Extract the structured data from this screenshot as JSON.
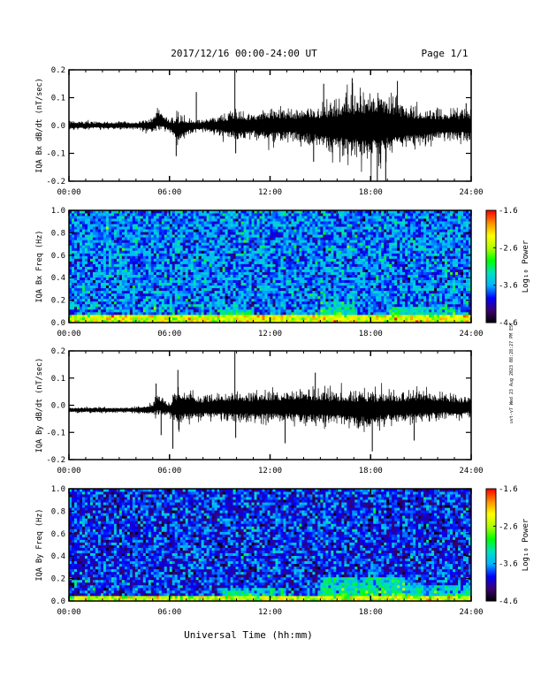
{
  "header": {
    "date_range": "2017/12/16  00:00-24:00 UT",
    "page": "Page 1/1"
  },
  "side_stamp": "uvt-v7 Wed 23 Aug 2023 08:28:27 PM EST",
  "x_axis_title": "Universal Time (hh:mm)",
  "colorbar_label": "Log₁₀ Power",
  "colorbar_ticks": [
    "-1.6",
    "-2.6",
    "-3.6",
    "-4.6"
  ],
  "colors": {
    "trace": "#000000",
    "colormap": [
      "#000000",
      "#3a006e",
      "#0000ff",
      "#00b4ff",
      "#00e0c0",
      "#00ff00",
      "#b0ff00",
      "#ffff00",
      "#ff9000",
      "#ff0000"
    ]
  },
  "chart_data": [
    {
      "type": "line",
      "ylabel": "IQA Bx dB/dt (nT/sec)",
      "xlim": [
        0,
        24
      ],
      "ylim": [
        -0.2,
        0.2
      ],
      "x_ticks": [
        "00:00",
        "06:00",
        "12:00",
        "18:00",
        "24:00"
      ],
      "y_ticks": [
        "-0.2",
        "-0.1",
        "0.0",
        "0.1",
        "0.2"
      ],
      "x_unit": "hours UT",
      "envelope": {
        "x": [
          0,
          2,
          4,
          5,
          5.3,
          6,
          6.5,
          7,
          8,
          9,
          10,
          11,
          12,
          13,
          14,
          15,
          16,
          17,
          18,
          19,
          20,
          21,
          22,
          23,
          24
        ],
        "upper": [
          0.02,
          0.015,
          0.015,
          0.03,
          0.07,
          0.02,
          0.05,
          0.03,
          0.02,
          0.04,
          0.06,
          0.05,
          0.07,
          0.06,
          0.07,
          0.08,
          0.1,
          0.12,
          0.13,
          0.12,
          0.08,
          0.07,
          0.06,
          0.06,
          0.07
        ],
        "lower": [
          -0.02,
          -0.015,
          -0.015,
          -0.03,
          -0.03,
          -0.02,
          -0.08,
          -0.04,
          -0.02,
          -0.04,
          -0.06,
          -0.05,
          -0.07,
          -0.06,
          -0.07,
          -0.09,
          -0.11,
          -0.13,
          -0.14,
          -0.12,
          -0.09,
          -0.08,
          -0.06,
          -0.06,
          -0.07
        ]
      },
      "spikes": [
        {
          "x": 6.4,
          "y": -0.11
        },
        {
          "x": 7.6,
          "y": 0.12
        },
        {
          "x": 9.9,
          "y": 0.2
        },
        {
          "x": 9.95,
          "y": -0.1
        },
        {
          "x": 14.6,
          "y": -0.13
        },
        {
          "x": 15.2,
          "y": 0.15
        },
        {
          "x": 16.9,
          "y": 0.17
        },
        {
          "x": 18.4,
          "y": -0.2
        },
        {
          "x": 18.9,
          "y": -0.2
        },
        {
          "x": 19.6,
          "y": 0.16
        },
        {
          "x": 23.7,
          "y": 0.08
        }
      ]
    },
    {
      "type": "heatmap",
      "ylabel": "IQA Bx Freq (Hz)",
      "xlim": [
        0,
        24
      ],
      "ylim": [
        0.0,
        1.0
      ],
      "x_ticks": [
        "00:00",
        "06:00",
        "12:00",
        "18:00",
        "24:00"
      ],
      "y_ticks": [
        "0.0",
        "0.2",
        "0.4",
        "0.6",
        "0.8",
        "1.0"
      ],
      "zlim": [
        -4.6,
        -1.6
      ],
      "background_level": -3.7,
      "low_freq_band": {
        "max_freq": 0.06,
        "level": -2.4
      },
      "enhanced_intervals": [
        {
          "x": [
            9,
            11
          ],
          "max_freq": 0.12,
          "level": -3.1
        },
        {
          "x": [
            15,
            17
          ],
          "max_freq": 0.18,
          "level": -3.0
        },
        {
          "x": [
            19,
            23
          ],
          "max_freq": 0.15,
          "level": -3.1
        }
      ]
    },
    {
      "type": "line",
      "ylabel": "IQA By dB/dt (nT/sec)",
      "xlim": [
        0,
        24
      ],
      "ylim": [
        -0.2,
        0.2
      ],
      "x_ticks": [
        "00:00",
        "06:00",
        "12:00",
        "18:00",
        "24:00"
      ],
      "y_ticks": [
        "-0.2",
        "-0.1",
        "0.0",
        "0.1",
        "0.2"
      ],
      "x_unit": "hours UT",
      "envelope": {
        "x": [
          0,
          2,
          4,
          5,
          5.3,
          6,
          6.5,
          7,
          8,
          9,
          10,
          11,
          12,
          13,
          14,
          15,
          16,
          17,
          18,
          19,
          20,
          21,
          22,
          23,
          24
        ],
        "upper": [
          -0.005,
          -0.005,
          -0.005,
          0.01,
          0.05,
          0.01,
          0.08,
          0.06,
          0.04,
          0.05,
          0.06,
          0.05,
          0.06,
          0.06,
          0.07,
          0.06,
          0.06,
          0.06,
          0.06,
          0.06,
          0.05,
          0.06,
          0.05,
          0.04,
          0.04
        ],
        "lower": [
          -0.03,
          -0.03,
          -0.03,
          -0.04,
          -0.05,
          -0.04,
          -0.09,
          -0.07,
          -0.06,
          -0.06,
          -0.07,
          -0.07,
          -0.07,
          -0.07,
          -0.08,
          -0.08,
          -0.08,
          -0.09,
          -0.09,
          -0.08,
          -0.07,
          -0.07,
          -0.06,
          -0.06,
          -0.05
        ]
      },
      "spikes": [
        {
          "x": 5.2,
          "y": 0.08
        },
        {
          "x": 5.5,
          "y": -0.11
        },
        {
          "x": 6.2,
          "y": -0.16
        },
        {
          "x": 6.5,
          "y": 0.13
        },
        {
          "x": 9.9,
          "y": 0.2
        },
        {
          "x": 9.95,
          "y": -0.12
        },
        {
          "x": 12.9,
          "y": -0.14
        },
        {
          "x": 14.7,
          "y": 0.12
        },
        {
          "x": 18.1,
          "y": -0.17
        },
        {
          "x": 20.6,
          "y": -0.13
        }
      ]
    },
    {
      "type": "heatmap",
      "ylabel": "IQA By Freq (Hz)",
      "xlim": [
        0,
        24
      ],
      "ylim": [
        0.0,
        1.0
      ],
      "x_ticks": [
        "00:00",
        "06:00",
        "12:00",
        "18:00",
        "24:00"
      ],
      "y_ticks": [
        "0.0",
        "0.2",
        "0.4",
        "0.6",
        "0.8",
        "1.0"
      ],
      "zlim": [
        -4.6,
        -1.6
      ],
      "background_level": -3.9,
      "low_freq_band": {
        "max_freq": 0.05,
        "level": -2.5
      },
      "enhanced_intervals": [
        {
          "x": [
            9,
            13
          ],
          "max_freq": 0.12,
          "level": -3.2
        },
        {
          "x": [
            15,
            20
          ],
          "max_freq": 0.22,
          "level": -3.0
        },
        {
          "x": [
            20,
            24
          ],
          "max_freq": 0.15,
          "level": -3.2
        }
      ]
    }
  ]
}
